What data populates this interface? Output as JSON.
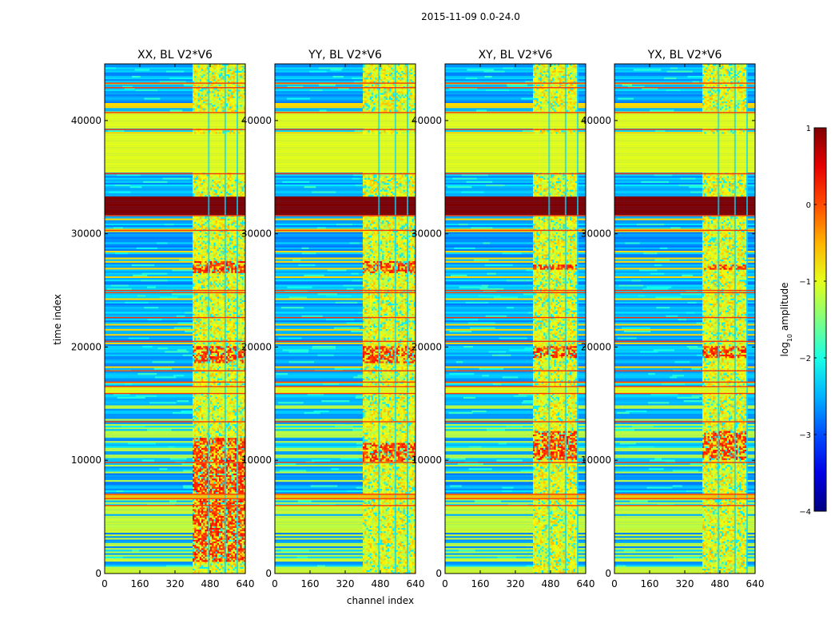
{
  "chart_data": {
    "type": "heatmap",
    "suptitle": "2015-11-09 0.0-24.0",
    "xlabel": "channel index",
    "ylabel": "time index",
    "xlim": [
      0,
      640
    ],
    "ylim": [
      0,
      45000
    ],
    "xticks": [
      0,
      160,
      320,
      480,
      640
    ],
    "xtick_labels": [
      "0",
      "160",
      "320",
      "480",
      "640"
    ],
    "yticks": [
      0,
      10000,
      20000,
      30000,
      40000
    ],
    "ytick_labels": [
      "0",
      "10000",
      "20000",
      "30000",
      "40000"
    ],
    "panels": [
      {
        "title": "XX, BL V2*V6",
        "rfi_band": [
          400,
          640
        ],
        "hot_spots": [
          [
            1000,
            12000
          ],
          [
            18500,
            20000
          ],
          [
            26500,
            27500
          ]
        ]
      },
      {
        "title": "YY, BL V2*V6",
        "rfi_band": [
          400,
          640
        ],
        "hot_spots": [
          [
            9800,
            11500
          ],
          [
            18500,
            20000
          ],
          [
            26500,
            27500
          ]
        ]
      },
      {
        "title": "XY, BL V2*V6",
        "rfi_band": [
          400,
          600
        ],
        "hot_spots": [
          [
            10000,
            12500
          ],
          [
            19000,
            20000
          ],
          [
            26800,
            27300
          ]
        ]
      },
      {
        "title": "YX, BL V2*V6",
        "rfi_band": [
          400,
          600
        ],
        "hot_spots": [
          [
            10000,
            12500
          ],
          [
            19000,
            20000
          ],
          [
            26800,
            27300
          ]
        ]
      }
    ],
    "colorbar": {
      "label_prefix": "log",
      "label_sub": "10",
      "label_suffix": " amplitude",
      "range": [
        -4,
        1
      ],
      "ticks": [
        1,
        0,
        -1,
        -2,
        -3,
        -4
      ],
      "tick_labels": [
        "1",
        "0",
        "−1",
        "−2",
        "−3",
        "−4"
      ],
      "colormap": "jet"
    },
    "flagged_bands": [
      {
        "from": 31600,
        "to": 33300,
        "level": 1.0
      },
      {
        "from": 35300,
        "to": 37100,
        "level": -1.0
      },
      {
        "from": 37100,
        "to": 38800,
        "level": -1.0
      },
      {
        "from": 39200,
        "to": 40700,
        "level": -1.0
      },
      {
        "from": 15900,
        "to": 16500,
        "level": -1.0
      },
      {
        "from": 6600,
        "to": 7000,
        "level": -0.6
      }
    ]
  }
}
